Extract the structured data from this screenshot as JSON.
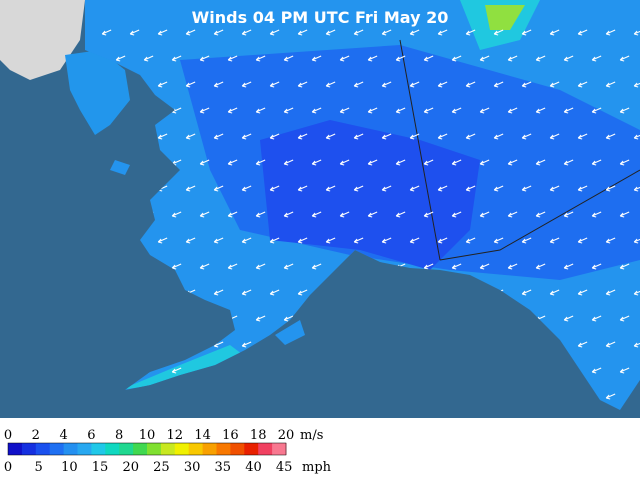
{
  "map": {
    "title": "Winds 04 PM UTC Fri May 20"
  },
  "legend": {
    "colors": [
      "#1010c8",
      "#1530e0",
      "#1a50ee",
      "#1f70f2",
      "#2490f0",
      "#28a8f0",
      "#20c8e8",
      "#10d8c0",
      "#20d890",
      "#40d850",
      "#80e030",
      "#c8e820",
      "#f0f000",
      "#f8c800",
      "#f8a000",
      "#f87800",
      "#f05000",
      "#e82000",
      "#f04060",
      "#f87890"
    ],
    "ms_ticks": [
      "0",
      "2",
      "4",
      "6",
      "8",
      "10",
      "12",
      "14",
      "16",
      "18",
      "20"
    ],
    "ms_unit": "m/s",
    "mph_ticks": [
      "0",
      "5",
      "10",
      "15",
      "20",
      "25",
      "30",
      "35",
      "40",
      "45"
    ],
    "mph_unit": "mph"
  }
}
